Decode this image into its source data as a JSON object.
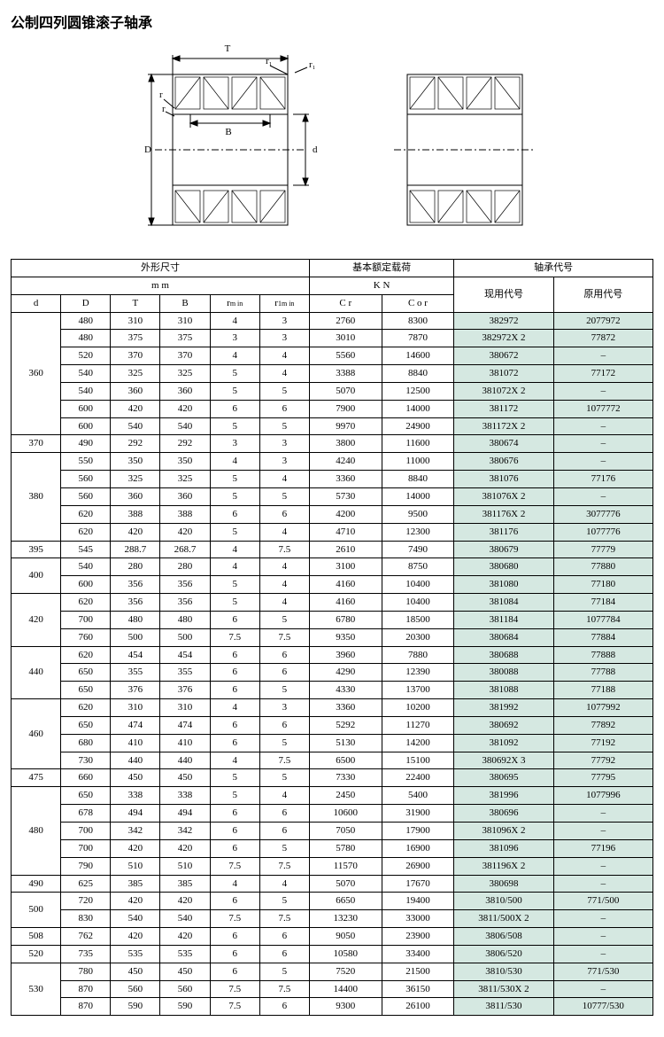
{
  "title": "公制四列圆锥滚子轴承",
  "diagram_labels": {
    "T": "T",
    "r1_top": "r₁",
    "r1_side": "r₁",
    "r": "r",
    "r_in": "r",
    "B": "B",
    "D": "D",
    "d": "d"
  },
  "header": {
    "dims": "外形尺寸",
    "mm": "m m",
    "load": "基本额定载荷",
    "kn": "K N",
    "model": "轴承代号",
    "cur": "现用代号",
    "old": "原用代号",
    "d": "d",
    "D": "D",
    "T": "T",
    "B": "B",
    "rmin": "rₘᵢₙ",
    "r1min": "r₁ₘᵢₙ",
    "Cr": "C r",
    "Cor": "C o r"
  },
  "groups": [
    {
      "d": "360",
      "rows": [
        {
          "D": "480",
          "T": "310",
          "B": "310",
          "r": "4",
          "r1": "3",
          "Cr": "2760",
          "Cor": "8300",
          "cur": "382972",
          "old": "2077972"
        },
        {
          "D": "480",
          "T": "375",
          "B": "375",
          "r": "3",
          "r1": "3",
          "Cr": "3010",
          "Cor": "7870",
          "cur": "382972X 2",
          "old": "77872"
        },
        {
          "D": "520",
          "T": "370",
          "B": "370",
          "r": "4",
          "r1": "4",
          "Cr": "5560",
          "Cor": "14600",
          "cur": "380672",
          "old": "–"
        },
        {
          "D": "540",
          "T": "325",
          "B": "325",
          "r": "5",
          "r1": "4",
          "Cr": "3388",
          "Cor": "8840",
          "cur": "381072",
          "old": "77172"
        },
        {
          "D": "540",
          "T": "360",
          "B": "360",
          "r": "5",
          "r1": "5",
          "Cr": "5070",
          "Cor": "12500",
          "cur": "381072X 2",
          "old": "–"
        },
        {
          "D": "600",
          "T": "420",
          "B": "420",
          "r": "6",
          "r1": "6",
          "Cr": "7900",
          "Cor": "14000",
          "cur": "381172",
          "old": "1077772"
        },
        {
          "D": "600",
          "T": "540",
          "B": "540",
          "r": "5",
          "r1": "5",
          "Cr": "9970",
          "Cor": "24900",
          "cur": "381172X 2",
          "old": "–"
        }
      ]
    },
    {
      "d": "370",
      "rows": [
        {
          "D": "490",
          "T": "292",
          "B": "292",
          "r": "3",
          "r1": "3",
          "Cr": "3800",
          "Cor": "11600",
          "cur": "380674",
          "old": "–"
        }
      ]
    },
    {
      "d": "380",
      "rows": [
        {
          "D": "550",
          "T": "350",
          "B": "350",
          "r": "4",
          "r1": "3",
          "Cr": "4240",
          "Cor": "11000",
          "cur": "380676",
          "old": "–"
        },
        {
          "D": "560",
          "T": "325",
          "B": "325",
          "r": "5",
          "r1": "4",
          "Cr": "3360",
          "Cor": "8840",
          "cur": "381076",
          "old": "77176"
        },
        {
          "D": "560",
          "T": "360",
          "B": "360",
          "r": "5",
          "r1": "5",
          "Cr": "5730",
          "Cor": "14000",
          "cur": "381076X 2",
          "old": "–"
        },
        {
          "D": "620",
          "T": "388",
          "B": "388",
          "r": "6",
          "r1": "6",
          "Cr": "4200",
          "Cor": "9500",
          "cur": "381176X 2",
          "old": "3077776"
        },
        {
          "D": "620",
          "T": "420",
          "B": "420",
          "r": "5",
          "r1": "4",
          "Cr": "4710",
          "Cor": "12300",
          "cur": "381176",
          "old": "1077776"
        }
      ]
    },
    {
      "d": "395",
      "rows": [
        {
          "D": "545",
          "T": "288.7",
          "B": "268.7",
          "r": "4",
          "r1": "7.5",
          "Cr": "2610",
          "Cor": "7490",
          "cur": "380679",
          "old": "77779"
        }
      ]
    },
    {
      "d": "400",
      "rows": [
        {
          "D": "540",
          "T": "280",
          "B": "280",
          "r": "4",
          "r1": "4",
          "Cr": "3100",
          "Cor": "8750",
          "cur": "380680",
          "old": "77880"
        },
        {
          "D": "600",
          "T": "356",
          "B": "356",
          "r": "5",
          "r1": "4",
          "Cr": "4160",
          "Cor": "10400",
          "cur": "381080",
          "old": "77180"
        }
      ]
    },
    {
      "d": "420",
      "rows": [
        {
          "D": "620",
          "T": "356",
          "B": "356",
          "r": "5",
          "r1": "4",
          "Cr": "4160",
          "Cor": "10400",
          "cur": "381084",
          "old": "77184"
        },
        {
          "D": "700",
          "T": "480",
          "B": "480",
          "r": "6",
          "r1": "5",
          "Cr": "6780",
          "Cor": "18500",
          "cur": "381184",
          "old": "1077784"
        },
        {
          "D": "760",
          "T": "500",
          "B": "500",
          "r": "7.5",
          "r1": "7.5",
          "Cr": "9350",
          "Cor": "20300",
          "cur": "380684",
          "old": "77884"
        }
      ]
    },
    {
      "d": "440",
      "rows": [
        {
          "D": "620",
          "T": "454",
          "B": "454",
          "r": "6",
          "r1": "6",
          "Cr": "3960",
          "Cor": "7880",
          "cur": "380688",
          "old": "77888"
        },
        {
          "D": "650",
          "T": "355",
          "B": "355",
          "r": "6",
          "r1": "6",
          "Cr": "4290",
          "Cor": "12390",
          "cur": "380088",
          "old": "77788"
        },
        {
          "D": "650",
          "T": "376",
          "B": "376",
          "r": "6",
          "r1": "5",
          "Cr": "4330",
          "Cor": "13700",
          "cur": "381088",
          "old": "77188"
        }
      ]
    },
    {
      "d": "460",
      "rows": [
        {
          "D": "620",
          "T": "310",
          "B": "310",
          "r": "4",
          "r1": "3",
          "Cr": "3360",
          "Cor": "10200",
          "cur": "381992",
          "old": "1077992"
        },
        {
          "D": "650",
          "T": "474",
          "B": "474",
          "r": "6",
          "r1": "6",
          "Cr": "5292",
          "Cor": "11270",
          "cur": "380692",
          "old": "77892"
        },
        {
          "D": "680",
          "T": "410",
          "B": "410",
          "r": "6",
          "r1": "5",
          "Cr": "5130",
          "Cor": "14200",
          "cur": "381092",
          "old": "77192"
        },
        {
          "D": "730",
          "T": "440",
          "B": "440",
          "r": "4",
          "r1": "7.5",
          "Cr": "6500",
          "Cor": "15100",
          "cur": "380692X 3",
          "old": "77792"
        }
      ]
    },
    {
      "d": "475",
      "rows": [
        {
          "D": "660",
          "T": "450",
          "B": "450",
          "r": "5",
          "r1": "5",
          "Cr": "7330",
          "Cor": "22400",
          "cur": "380695",
          "old": "77795"
        }
      ]
    },
    {
      "d": "480",
      "rows": [
        {
          "D": "650",
          "T": "338",
          "B": "338",
          "r": "5",
          "r1": "4",
          "Cr": "2450",
          "Cor": "5400",
          "cur": "381996",
          "old": "1077996"
        },
        {
          "D": "678",
          "T": "494",
          "B": "494",
          "r": "6",
          "r1": "6",
          "Cr": "10600",
          "Cor": "31900",
          "cur": "380696",
          "old": "–"
        },
        {
          "D": "700",
          "T": "342",
          "B": "342",
          "r": "6",
          "r1": "6",
          "Cr": "7050",
          "Cor": "17900",
          "cur": "381096X 2",
          "old": "–"
        },
        {
          "D": "700",
          "T": "420",
          "B": "420",
          "r": "6",
          "r1": "5",
          "Cr": "5780",
          "Cor": "16900",
          "cur": "381096",
          "old": "77196"
        },
        {
          "D": "790",
          "T": "510",
          "B": "510",
          "r": "7.5",
          "r1": "7.5",
          "Cr": "11570",
          "Cor": "26900",
          "cur": "381196X 2",
          "old": "–"
        }
      ]
    },
    {
      "d": "490",
      "rows": [
        {
          "D": "625",
          "T": "385",
          "B": "385",
          "r": "4",
          "r1": "4",
          "Cr": "5070",
          "Cor": "17670",
          "cur": "380698",
          "old": "–"
        }
      ]
    },
    {
      "d": "500",
      "rows": [
        {
          "D": "720",
          "T": "420",
          "B": "420",
          "r": "6",
          "r1": "5",
          "Cr": "6650",
          "Cor": "19400",
          "cur": "3810/500",
          "old": "771/500"
        },
        {
          "D": "830",
          "T": "540",
          "B": "540",
          "r": "7.5",
          "r1": "7.5",
          "Cr": "13230",
          "Cor": "33000",
          "cur": "3811/500X 2",
          "old": "–"
        }
      ]
    },
    {
      "d": "508",
      "rows": [
        {
          "D": "762",
          "T": "420",
          "B": "420",
          "r": "6",
          "r1": "6",
          "Cr": "9050",
          "Cor": "23900",
          "cur": "3806/508",
          "old": "–"
        }
      ]
    },
    {
      "d": "520",
      "rows": [
        {
          "D": "735",
          "T": "535",
          "B": "535",
          "r": "6",
          "r1": "6",
          "Cr": "10580",
          "Cor": "33400",
          "cur": "3806/520",
          "old": "–"
        }
      ]
    },
    {
      "d": "530",
      "rows": [
        {
          "D": "780",
          "T": "450",
          "B": "450",
          "r": "6",
          "r1": "5",
          "Cr": "7520",
          "Cor": "21500",
          "cur": "3810/530",
          "old": "771/530"
        },
        {
          "D": "870",
          "T": "560",
          "B": "560",
          "r": "7.5",
          "r1": "7.5",
          "Cr": "14400",
          "Cor": "36150",
          "cur": "3811/530X 2",
          "old": "–"
        },
        {
          "D": "870",
          "T": "590",
          "B": "590",
          "r": "7.5",
          "r1": "6",
          "Cr": "9300",
          "Cor": "26100",
          "cur": "3811/530",
          "old": "10777/530"
        }
      ]
    }
  ],
  "colors": {
    "model_bg": "#d5e8e1",
    "line": "#000000"
  }
}
